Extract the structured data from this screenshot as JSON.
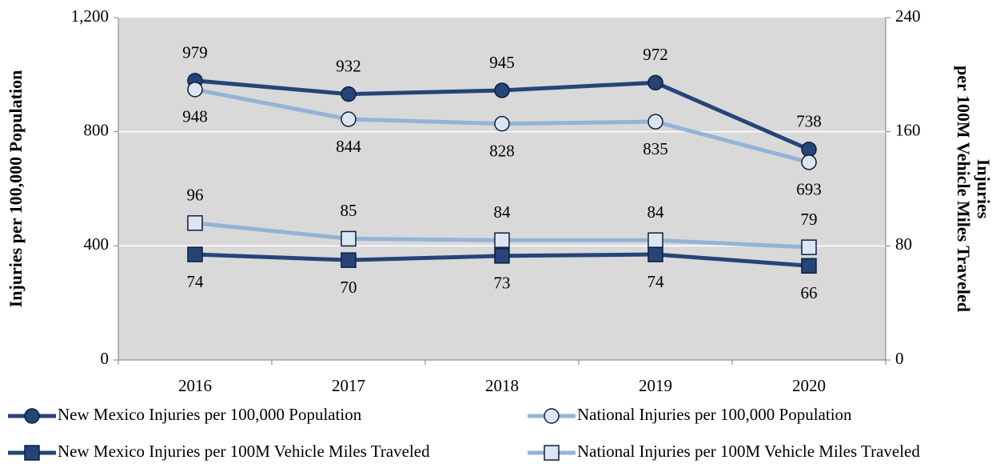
{
  "chart_data": {
    "type": "line",
    "ylabel": "Injuries per 100,000 Population",
    "y2label": [
      "Injuries",
      "per 100M Vehicle Miles Traveled"
    ],
    "categories": [
      "2016",
      "2017",
      "2018",
      "2019",
      "2020"
    ],
    "ylim": [
      0,
      1200
    ],
    "yticks": [
      0,
      400,
      800,
      {
        "value": 1200,
        "label": "1,200"
      }
    ],
    "y2lim": [
      0,
      240
    ],
    "y2ticks": [
      0,
      80,
      160,
      240
    ],
    "grid": true,
    "series": [
      {
        "name": "New Mexico Injuries per 100,000 Population",
        "color": "#264478",
        "marker": "circle",
        "values": [
          979,
          932,
          945,
          972,
          738
        ]
      },
      {
        "name": "National Injuries per 100,000 Population",
        "color": "#95b3d7",
        "marker": "circle",
        "values": [
          948,
          844,
          828,
          835,
          693
        ]
      },
      {
        "name": "New Mexico Injuries per 100M Vehicle Miles Traveled",
        "color": "#264478",
        "marker": "square",
        "axis": "y2",
        "values": [
          74,
          70,
          73,
          74,
          66
        ]
      },
      {
        "name": "National Injuries per 100M Vehicle Miles Traveled",
        "color": "#95b3d7",
        "marker": "square",
        "axis": "y2",
        "values": [
          96,
          85,
          84,
          84,
          79
        ]
      }
    ]
  }
}
